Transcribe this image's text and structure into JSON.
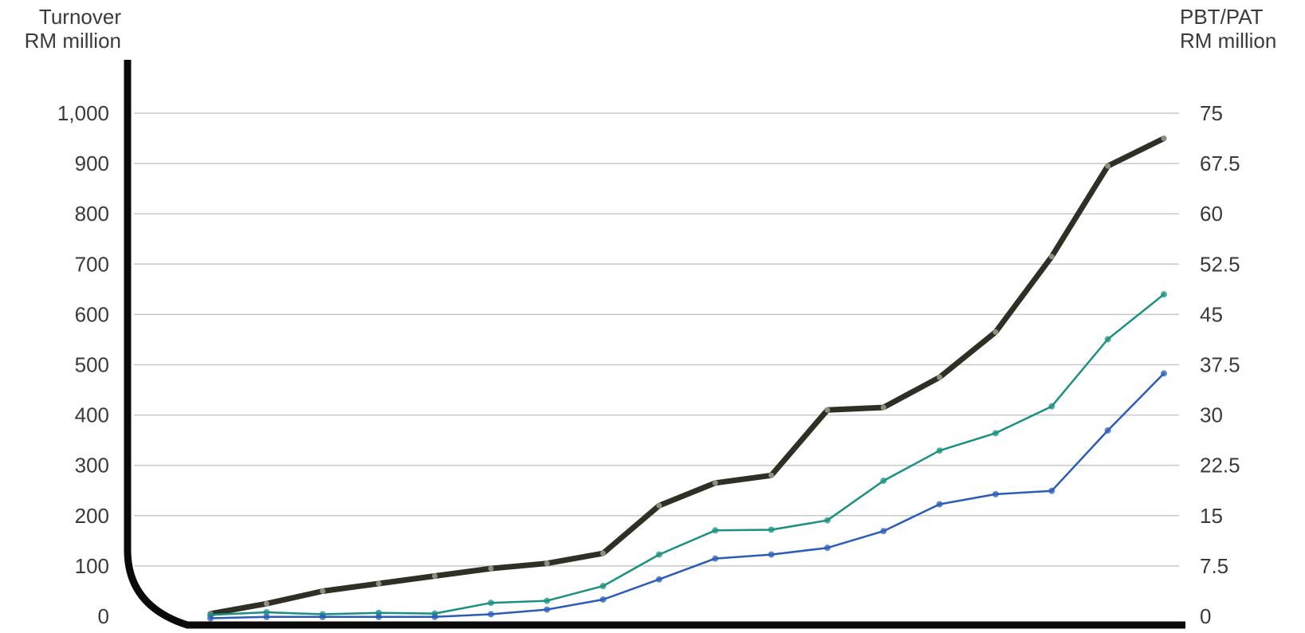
{
  "chart_data": {
    "type": "line",
    "left_axis": {
      "label_line1": "Turnover",
      "label_line2": "RM million",
      "ticks": [
        "0",
        "100",
        "200",
        "300",
        "400",
        "500",
        "600",
        "700",
        "800",
        "900",
        "1,000"
      ],
      "ylim": [
        0,
        1000
      ]
    },
    "right_axis": {
      "label_line1": "PBT/PAT",
      "label_line2": "RM million",
      "ticks": [
        "0",
        "7.5",
        "15",
        "22.5",
        "30",
        "37.5",
        "45",
        "52.5",
        "60",
        "67.5",
        "75"
      ],
      "ylim": [
        0,
        75
      ]
    },
    "grid": true,
    "x_count": 18,
    "series": [
      {
        "axis": "left",
        "color": "#2f2f26",
        "values": [
          5,
          25,
          50,
          65,
          80,
          95,
          105,
          125,
          220,
          265,
          280,
          410,
          415,
          475,
          565,
          715,
          895,
          950
        ]
      },
      {
        "axis": "right",
        "color": "#1a9080",
        "values": [
          0.2,
          0.6,
          0.3,
          0.5,
          0.4,
          2.0,
          2.3,
          4.5,
          9.2,
          12.8,
          12.9,
          14.3,
          20.2,
          24.7,
          27.3,
          31.3,
          41.3,
          48.0
        ]
      },
      {
        "axis": "right",
        "color": "#2a5cb8",
        "values": [
          -0.3,
          -0.1,
          -0.1,
          -0.1,
          -0.1,
          0.3,
          1.0,
          2.5,
          5.5,
          8.6,
          9.2,
          10.2,
          12.7,
          16.7,
          18.2,
          18.7,
          27.7,
          36.2
        ]
      }
    ]
  }
}
